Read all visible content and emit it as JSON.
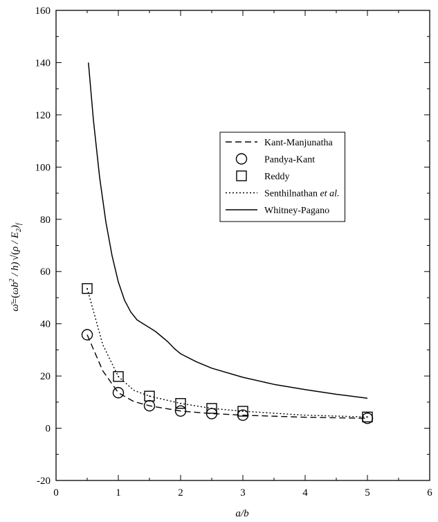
{
  "chart_data": {
    "type": "line",
    "xlabel": "a/b",
    "ylabel": "ω̄ = (ωb²/h)√(ρ/E₂)f",
    "xlim": [
      0,
      6
    ],
    "ylim": [
      -20,
      160
    ],
    "x_ticks": [
      "0",
      "1",
      "2",
      "3",
      "4",
      "5",
      "6"
    ],
    "y_ticks": [
      "-20",
      "0",
      "20",
      "40",
      "60",
      "80",
      "100",
      "120",
      "140",
      "160"
    ],
    "grid": false,
    "legend_position": "center-right",
    "series": [
      {
        "name": "Kant-Manjunatha",
        "style": "dashed",
        "x": [
          0.5,
          0.75,
          1.0,
          1.25,
          1.5,
          2.0,
          2.5,
          3.0,
          4.0,
          5.0
        ],
        "y": [
          35.8,
          22.0,
          13.6,
          10.2,
          8.6,
          6.6,
          5.6,
          5.0,
          4.2,
          3.8
        ]
      },
      {
        "name": "Pandya-Kant",
        "style": "circle-markers",
        "x": [
          0.5,
          1.0,
          1.5,
          2.0,
          2.5,
          3.0,
          5.0
        ],
        "y": [
          35.8,
          13.6,
          8.6,
          6.6,
          5.6,
          5.0,
          3.8
        ]
      },
      {
        "name": "Reddy",
        "style": "square-markers",
        "x": [
          0.5,
          1.0,
          1.5,
          2.0,
          2.5,
          3.0,
          5.0
        ],
        "y": [
          53.5,
          19.8,
          12.3,
          9.5,
          7.6,
          6.5,
          4.3
        ]
      },
      {
        "name": "Senthilnathan et al.",
        "style": "dotted",
        "x": [
          0.5,
          0.75,
          1.0,
          1.25,
          1.5,
          2.0,
          2.5,
          3.0,
          4.0,
          5.0
        ],
        "y": [
          53.5,
          32.0,
          19.8,
          14.5,
          12.3,
          9.5,
          7.6,
          6.5,
          5.0,
          4.3
        ]
      },
      {
        "name": "Whitney-Pagano",
        "style": "solid",
        "x": [
          0.52,
          0.6,
          0.7,
          0.8,
          0.9,
          1.0,
          1.1,
          1.2,
          1.3,
          1.4,
          1.5,
          1.6,
          1.7,
          1.8,
          1.9,
          2.0,
          2.25,
          2.5,
          3.0,
          3.5,
          4.0,
          4.5,
          5.0
        ],
        "y": [
          140,
          118,
          96,
          79,
          66,
          56,
          49,
          44.5,
          41.5,
          40,
          38.5,
          37,
          35,
          33,
          30.5,
          28.5,
          25.5,
          23,
          19.5,
          16.8,
          14.8,
          13,
          11.5
        ]
      }
    ]
  }
}
